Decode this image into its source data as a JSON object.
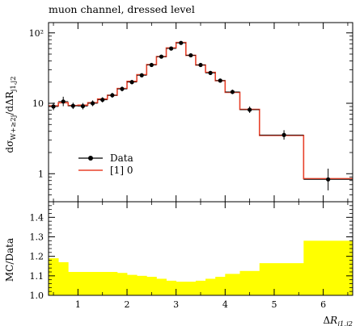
{
  "chart_data": [
    {
      "type": "line",
      "title": "muon channel, dressed level",
      "ylabel": "dσ_{W+≥2j}/dΔR_{j1,j2}",
      "yscale": "log",
      "ylim": [
        0.4,
        140
      ],
      "xlim": [
        0.4,
        6.6
      ],
      "yticks": [
        1,
        10,
        100
      ],
      "ytick_labels": [
        "1",
        "10",
        "10²"
      ],
      "legend": {
        "location": "left",
        "entries": [
          {
            "label": "Data",
            "color": "#000000"
          },
          {
            "label": "[1] 0",
            "color": "#e8412a"
          }
        ]
      },
      "series": [
        {
          "name": "Data",
          "x": [
            0.5,
            0.7,
            0.9,
            1.1,
            1.3,
            1.5,
            1.7,
            1.9,
            2.1,
            2.3,
            2.5,
            2.7,
            2.9,
            3.1,
            3.3,
            3.5,
            3.7,
            3.9,
            4.15,
            4.5,
            5.2,
            6.1
          ],
          "y": [
            9.0,
            10.6,
            9.2,
            9.1,
            10.0,
            11.2,
            13.0,
            16.0,
            20.0,
            25.0,
            35.0,
            46.0,
            60.0,
            72.0,
            48.0,
            35.0,
            27.0,
            21.0,
            14.5,
            8.1,
            3.55,
            0.83
          ],
          "yerr_low": [
            1.0,
            1.5,
            0.9,
            0.9,
            0.9,
            0.9,
            1.0,
            1.2,
            1.4,
            1.6,
            2.0,
            2.5,
            3.0,
            3.5,
            2.5,
            2.0,
            1.6,
            1.3,
            1.0,
            0.8,
            0.5,
            0.25
          ],
          "yerr_high": [
            1.2,
            1.8,
            1.0,
            1.0,
            1.0,
            1.0,
            1.1,
            1.3,
            1.5,
            1.8,
            2.2,
            2.8,
            3.4,
            4.0,
            2.8,
            2.2,
            1.8,
            1.4,
            1.1,
            0.9,
            0.6,
            0.35
          ]
        },
        {
          "name": "[1] 0",
          "type": "step",
          "bin_edges": [
            0.4,
            0.6,
            0.8,
            1.0,
            1.2,
            1.4,
            1.6,
            1.8,
            2.0,
            2.2,
            2.4,
            2.6,
            2.8,
            3.0,
            3.2,
            3.4,
            3.6,
            3.8,
            4.0,
            4.3,
            4.7,
            5.6,
            6.6
          ],
          "values": [
            9.2,
            10.2,
            9.3,
            9.4,
            10.2,
            11.5,
            13.0,
            16.2,
            20.5,
            25.5,
            35.5,
            46.0,
            61.0,
            73.0,
            48.0,
            35.0,
            27.5,
            21.0,
            14.3,
            8.2,
            3.5,
            0.85
          ]
        }
      ]
    },
    {
      "type": "area",
      "ylabel": "MC/Data",
      "xlabel": "ΔR_{j1,j2}",
      "xlim": [
        0.4,
        6.6
      ],
      "ylim": [
        1.0,
        1.48
      ],
      "xticks": [
        1,
        2,
        3,
        4,
        5,
        6
      ],
      "yticks": [
        1.0,
        1.1,
        1.2,
        1.3,
        1.4
      ],
      "ytick_labels": [
        "1.0",
        "1.1",
        "1.2",
        "1.3",
        "1.4"
      ],
      "series": [
        {
          "name": "uncertainty band",
          "color": "#ffff00",
          "bin_edges": [
            0.4,
            0.6,
            0.8,
            1.0,
            1.2,
            1.4,
            1.6,
            1.8,
            2.0,
            2.2,
            2.4,
            2.6,
            2.8,
            3.0,
            3.2,
            3.4,
            3.6,
            3.8,
            4.0,
            4.3,
            4.7,
            5.6,
            6.6
          ],
          "values": [
            1.19,
            1.17,
            1.12,
            1.12,
            1.12,
            1.12,
            1.12,
            1.115,
            1.105,
            1.1,
            1.095,
            1.085,
            1.075,
            1.07,
            1.07,
            1.075,
            1.085,
            1.095,
            1.11,
            1.125,
            1.165,
            1.28
          ]
        }
      ]
    }
  ]
}
